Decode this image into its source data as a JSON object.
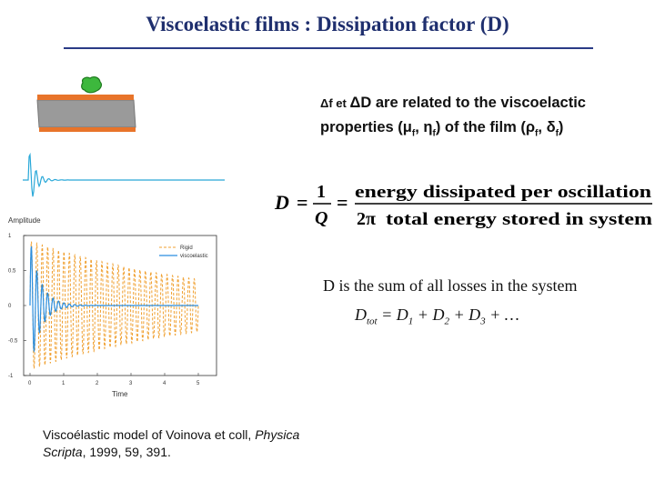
{
  "title": "Viscoelastic films : Dissipation factor (D)",
  "statement": {
    "delta_sym": "Δ",
    "f": "f",
    "et": " et ",
    "delta_d": "ΔD",
    "rest1": " are related to the viscoelactic",
    "line2_a": "properties (",
    "mu": "μ",
    "eta": "η",
    "sub_f": "f",
    "sep": ", ",
    "mid": ") of the film (",
    "rho": "ρ",
    "delta": "δ",
    "end": ")"
  },
  "formula": {
    "lhs": "D",
    "eq": "=",
    "num": "1",
    "den": "Q",
    "two_pi": "2π",
    "numerator_text": "energy dissipated per oscillation",
    "denominator_text": "total energy stored in system"
  },
  "sum": {
    "text": "D is the  sum of all losses in the system",
    "d_tot": "D",
    "tot": "tot",
    "eq": " = ",
    "d1": "D",
    "s1": "1",
    "plus": " + ",
    "d2": "D",
    "s2": "2",
    "d3": "D",
    "s3": "3",
    "tail": " + …"
  },
  "plot": {
    "ylabel": "Amplitude",
    "xlabel": "Time",
    "legend_rigid": "Rigid",
    "legend_visco": "viscoelastic",
    "y_ticks": [
      "1",
      "0.5",
      "0",
      "-0.5",
      "-1"
    ],
    "x_ticks": [
      "0",
      "1",
      "2",
      "3",
      "4",
      "5"
    ],
    "rigid_color": "#f0a030",
    "visco_color": "#2a8ee0"
  },
  "reference": {
    "line1_a": "Viscoélastic model of Voinova et coll, ",
    "journal1": "Physica",
    "journal2": "Scripta",
    "line2_rest": ", 1999, 59, 391."
  },
  "colors": {
    "title": "#1f2f6e",
    "film": "#e8742a",
    "substrate": "#9a9a9a",
    "blob": "#3db83d",
    "small_wave": "#29a8d8"
  }
}
